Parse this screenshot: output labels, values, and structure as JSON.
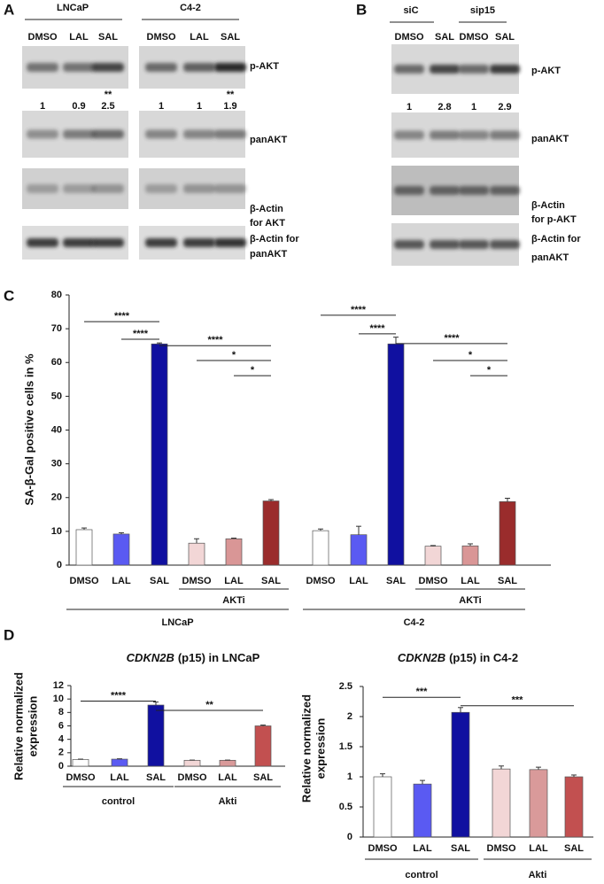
{
  "blots": [
    {
      "label": "A",
      "groups": [
        {
          "name": "LNCaP",
          "lanes": [
            "DMSO",
            "LAL",
            "SAL"
          ]
        },
        {
          "name": "C4-2",
          "lanes": [
            "DMSO",
            "LAL",
            "SAL"
          ]
        }
      ],
      "rows": [
        {
          "label": [
            "p-AKT"
          ]
        },
        {
          "label": [
            "panAKT"
          ]
        },
        {
          "label": [
            "β-Actin",
            "for AKT"
          ]
        },
        {
          "label": [
            "β-Actin for",
            "panAKT"
          ]
        }
      ],
      "quantification": [
        1,
        0.9,
        2.5,
        1,
        1,
        1.9
      ],
      "stars": [
        {
          "lane": 2,
          "text": "**"
        },
        {
          "lane": 5,
          "text": "**"
        }
      ]
    },
    {
      "label": "B",
      "groups": [
        {
          "name": "siC",
          "lanes": [
            "DMSO",
            "SAL"
          ]
        },
        {
          "name": "sip15",
          "lanes": [
            "DMSO",
            "SAL"
          ]
        }
      ],
      "rows": [
        {
          "label": [
            "p-AKT"
          ]
        },
        {
          "label": [
            "panAKT"
          ]
        },
        {
          "label": [
            "β-Actin",
            "for p-AKT"
          ]
        },
        {
          "label": [
            "β-Actin for",
            "panAKT"
          ]
        }
      ],
      "quantification": [
        1,
        2.8,
        1,
        2.9
      ],
      "stars": []
    }
  ],
  "chart_data": [
    {
      "type": "bar",
      "panel_label": "C",
      "ylabel": [
        "SA-β-Gal positive cells in %"
      ],
      "categories": [
        "DMSO",
        "LAL",
        "SAL",
        "DMSO",
        "LAL",
        "SAL",
        "DMSO",
        "LAL",
        "SAL",
        "DMSO",
        "LAL",
        "SAL"
      ],
      "values": [
        10.5,
        9.2,
        65.5,
        6.5,
        7.8,
        19,
        10.2,
        9,
        65.5,
        5.6,
        5.7,
        18.8
      ],
      "errors": [
        0.5,
        0.4,
        0.3,
        1.3,
        0.2,
        0.4,
        0.5,
        2.5,
        2,
        0.2,
        0.6,
        1
      ],
      "colors": [
        "#ffffff",
        "#5a5af2",
        "#1010a0",
        "#f2d6d6",
        "#d99696",
        "#9a2c2c",
        "#ffffff",
        "#5a5af2",
        "#1010a0",
        "#f2d6d6",
        "#d99696",
        "#9a2c2c"
      ],
      "ylim": [
        0,
        80
      ],
      "yticks": [
        0,
        10,
        20,
        30,
        40,
        50,
        60,
        70,
        80
      ],
      "subgroups": [
        {
          "name": "AKTi",
          "from": 3,
          "to": 5
        },
        {
          "name": "AKTi",
          "from": 9,
          "to": 11
        }
      ],
      "groups": [
        {
          "name": "LNCaP",
          "from": 0,
          "to": 5
        },
        {
          "name": "C4-2",
          "from": 6,
          "to": 11
        }
      ],
      "annotations": [
        {
          "text": "****",
          "from": 0,
          "to": 2
        },
        {
          "text": "****",
          "from": 1,
          "to": 2
        },
        {
          "text": "****",
          "from": 2,
          "to": 5
        },
        {
          "text": "*",
          "from": 3,
          "to": 5
        },
        {
          "text": "*",
          "from": 4,
          "to": 5
        },
        {
          "text": "****",
          "from": 6,
          "to": 8
        },
        {
          "text": "****",
          "from": 7,
          "to": 8
        },
        {
          "text": "****",
          "from": 8,
          "to": 11
        },
        {
          "text": "*",
          "from": 9,
          "to": 11
        },
        {
          "text": "*",
          "from": 10,
          "to": 11
        }
      ]
    },
    {
      "type": "bar",
      "panel_label": "D",
      "title_gene": "CDKN2B",
      "title_rest": "(p15) in LNCaP",
      "ylabel": [
        "Relative normalized",
        "expression"
      ],
      "categories": [
        "DMSO",
        "LAL",
        "SAL",
        "DMSO",
        "LAL",
        "SAL"
      ],
      "values": [
        1,
        1.05,
        9.1,
        0.88,
        0.88,
        6
      ],
      "errors": [
        0.05,
        0.05,
        0.45,
        0.03,
        0.03,
        0.12
      ],
      "colors": [
        "#ffffff",
        "#5a5af2",
        "#1010a0",
        "#f2d6d6",
        "#d99a9a",
        "#c25050"
      ],
      "ylim": [
        0,
        12
      ],
      "yticks": [
        0,
        2,
        4,
        6,
        8,
        10,
        12
      ],
      "subgroups": [],
      "groups": [
        {
          "name": "control",
          "from": 0,
          "to": 2
        },
        {
          "name": "Akti",
          "from": 3,
          "to": 5
        }
      ],
      "annotations": [
        {
          "text": "****",
          "from": 0,
          "to": 2
        },
        {
          "text": "**",
          "from": 2,
          "to": 5
        }
      ]
    },
    {
      "type": "bar",
      "title_gene": "CDKN2B",
      "title_rest": "(p15) in C4-2",
      "ylabel": [
        "Relative normalized",
        "expression"
      ],
      "categories": [
        "DMSO",
        "LAL",
        "SAL",
        "DMSO",
        "LAL",
        "SAL"
      ],
      "values": [
        1,
        0.88,
        2.07,
        1.13,
        1.12,
        1
      ],
      "errors": [
        0.05,
        0.06,
        0.08,
        0.05,
        0.04,
        0.03
      ],
      "colors": [
        "#ffffff",
        "#5a5af2",
        "#1010a0",
        "#f2d6d6",
        "#d99a9a",
        "#c25050"
      ],
      "ylim": [
        0,
        2.5
      ],
      "yticks": [
        0,
        0.5,
        1,
        1.5,
        2,
        2.5
      ],
      "subgroups": [],
      "groups": [
        {
          "name": "control",
          "from": 0,
          "to": 2
        },
        {
          "name": "Akti",
          "from": 3,
          "to": 5
        }
      ],
      "annotations": [
        {
          "text": "***",
          "from": 0,
          "to": 2
        },
        {
          "text": "***",
          "from": 2,
          "to": 5
        }
      ]
    }
  ]
}
